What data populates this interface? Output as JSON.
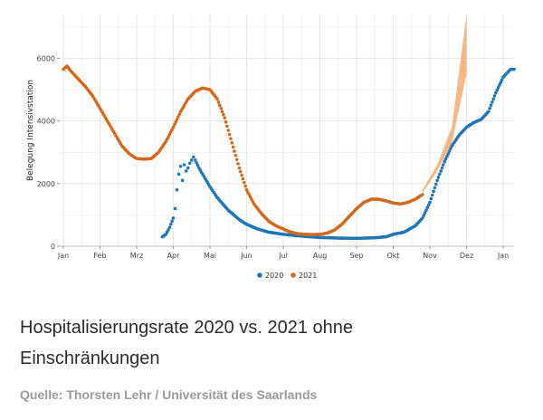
{
  "caption": {
    "title": "Hospitalisierungsrate 2020 vs. 2021 ohne Einschränkungen",
    "source": "Quelle: Thorsten Lehr / Universität des Saarlands"
  },
  "chart_data": {
    "type": "scatter",
    "ylabel": "Belegung Intensivstation",
    "xlabel": "",
    "x_ticks": [
      "Jan",
      "Feb",
      "Mrz",
      "Apr",
      "Mai",
      "Jun",
      "Jul",
      "Aug",
      "Sep",
      "Okt",
      "Nov",
      "Dez",
      "Jan"
    ],
    "y_ticks": [
      0,
      2000,
      4000,
      6000
    ],
    "ylim": [
      0,
      7400
    ],
    "x_unit": "month index (0 = Jan 1, 12 = Jan 1 of next year)",
    "grid": true,
    "legend_position": "bottom",
    "series": [
      {
        "name": "2020",
        "color": "#1f77b4",
        "points": [
          [
            2.7,
            300
          ],
          [
            2.8,
            380
          ],
          [
            2.9,
            600
          ],
          [
            3.0,
            900
          ],
          [
            3.05,
            1200
          ],
          [
            3.1,
            1800
          ],
          [
            3.15,
            2300
          ],
          [
            3.2,
            2550
          ],
          [
            3.25,
            2100
          ],
          [
            3.3,
            2600
          ],
          [
            3.35,
            2400
          ],
          [
            3.4,
            2500
          ],
          [
            3.45,
            2650
          ],
          [
            3.5,
            2750
          ],
          [
            3.55,
            2850
          ],
          [
            3.6,
            2750
          ],
          [
            3.7,
            2500
          ],
          [
            3.8,
            2300
          ],
          [
            3.9,
            2100
          ],
          [
            4.0,
            1900
          ],
          [
            4.2,
            1550
          ],
          [
            4.5,
            1150
          ],
          [
            4.8,
            850
          ],
          [
            5.0,
            700
          ],
          [
            5.3,
            550
          ],
          [
            5.6,
            450
          ],
          [
            6.0,
            380
          ],
          [
            6.5,
            320
          ],
          [
            7.0,
            280
          ],
          [
            7.5,
            260
          ],
          [
            8.0,
            250
          ],
          [
            8.5,
            270
          ],
          [
            8.8,
            300
          ],
          [
            9.0,
            380
          ],
          [
            9.3,
            450
          ],
          [
            9.6,
            650
          ],
          [
            9.8,
            900
          ],
          [
            10.0,
            1400
          ],
          [
            10.2,
            2100
          ],
          [
            10.4,
            2700
          ],
          [
            10.6,
            3200
          ],
          [
            10.8,
            3550
          ],
          [
            11.0,
            3800
          ],
          [
            11.2,
            3950
          ],
          [
            11.4,
            4050
          ],
          [
            11.6,
            4300
          ],
          [
            11.8,
            4900
          ],
          [
            12.0,
            5400
          ],
          [
            12.2,
            5650
          ],
          [
            12.3,
            5650
          ]
        ]
      },
      {
        "name": "2021",
        "color": "#d2691e",
        "points": [
          [
            0.0,
            5650
          ],
          [
            0.1,
            5750
          ],
          [
            0.2,
            5600
          ],
          [
            0.4,
            5350
          ],
          [
            0.6,
            5100
          ],
          [
            0.8,
            4800
          ],
          [
            1.0,
            4400
          ],
          [
            1.2,
            4000
          ],
          [
            1.4,
            3600
          ],
          [
            1.6,
            3200
          ],
          [
            1.8,
            2950
          ],
          [
            2.0,
            2800
          ],
          [
            2.2,
            2780
          ],
          [
            2.4,
            2800
          ],
          [
            2.6,
            3000
          ],
          [
            2.8,
            3350
          ],
          [
            3.0,
            3800
          ],
          [
            3.2,
            4300
          ],
          [
            3.4,
            4700
          ],
          [
            3.6,
            4950
          ],
          [
            3.8,
            5050
          ],
          [
            4.0,
            5000
          ],
          [
            4.2,
            4700
          ],
          [
            4.4,
            4100
          ],
          [
            4.6,
            3300
          ],
          [
            4.8,
            2500
          ],
          [
            5.0,
            1800
          ],
          [
            5.2,
            1350
          ],
          [
            5.4,
            1050
          ],
          [
            5.6,
            800
          ],
          [
            5.8,
            650
          ],
          [
            6.0,
            550
          ],
          [
            6.2,
            450
          ],
          [
            6.4,
            400
          ],
          [
            6.6,
            380
          ],
          [
            6.8,
            370
          ],
          [
            7.0,
            380
          ],
          [
            7.2,
            420
          ],
          [
            7.4,
            520
          ],
          [
            7.6,
            700
          ],
          [
            7.8,
            950
          ],
          [
            8.0,
            1200
          ],
          [
            8.2,
            1400
          ],
          [
            8.4,
            1500
          ],
          [
            8.6,
            1500
          ],
          [
            8.8,
            1450
          ],
          [
            9.0,
            1380
          ],
          [
            9.2,
            1350
          ],
          [
            9.4,
            1400
          ],
          [
            9.6,
            1500
          ],
          [
            9.8,
            1650
          ]
        ]
      }
    ],
    "projection": {
      "series": "2021",
      "color": "#f0a060",
      "x_start": 9.8,
      "x_end": 11.0,
      "lower": [
        [
          9.8,
          1700
        ],
        [
          10.2,
          2400
        ],
        [
          10.6,
          3300
        ],
        [
          11.0,
          5500
        ]
      ],
      "upper": [
        [
          9.8,
          1800
        ],
        [
          10.2,
          2600
        ],
        [
          10.6,
          3800
        ],
        [
          11.0,
          7400
        ]
      ]
    }
  }
}
